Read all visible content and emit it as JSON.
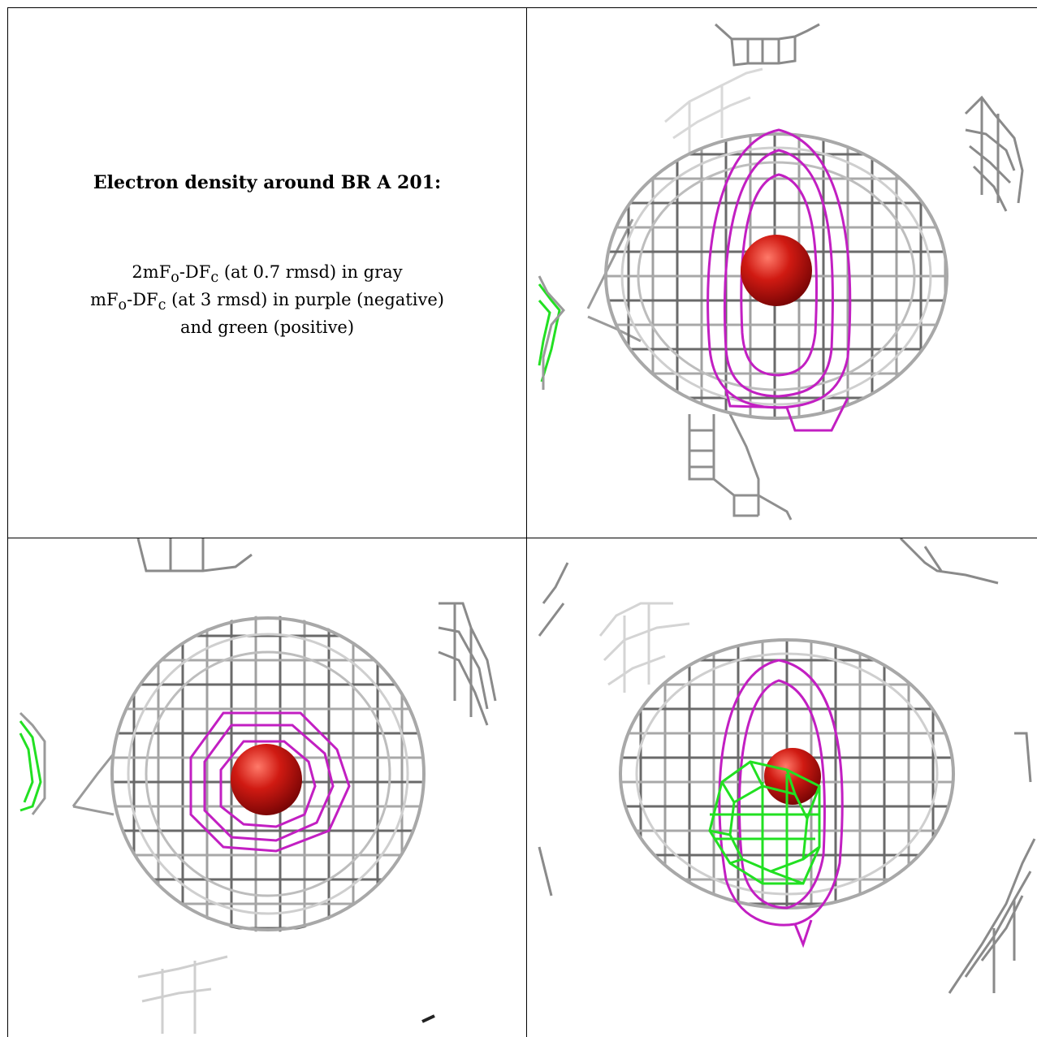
{
  "caption": {
    "title": "Electron density around BR A 201:",
    "line1_main": "2mF",
    "line1_sub1": "o",
    "line1_mid": "-DF",
    "line1_sub2": "c",
    "line1_rest": " (at 0.7 rmsd) in gray",
    "line2_main": "mF",
    "line2_sub1": "o",
    "line2_mid": "-DF",
    "line2_sub2": "c",
    "line2_rest": " (at 3 rmsd) in purple (negative)",
    "line3": "and green (positive)"
  },
  "colors": {
    "mesh_gray": "#9a9a9a",
    "mesh_dark": "#5f5f5f",
    "mesh_light": "#d6d6d6",
    "negative_purple": "#c21fc2",
    "positive_green": "#22e022",
    "atom_red": "#c01010",
    "frame": "#000000"
  },
  "panels": [
    {
      "name": "view-top-right",
      "icon": "density-mesh-icon"
    },
    {
      "name": "view-bottom-left",
      "icon": "density-mesh-icon"
    },
    {
      "name": "view-bottom-right",
      "icon": "density-mesh-icon"
    }
  ]
}
